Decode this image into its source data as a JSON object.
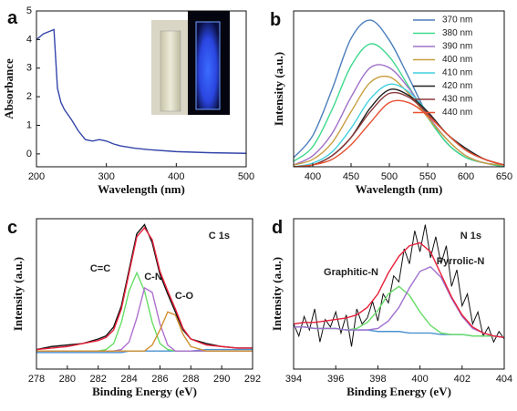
{
  "chart_data": [
    {
      "type": "line",
      "panel": "a",
      "xlabel": "Wavelength (nm)",
      "ylabel": "Absorbance",
      "xlim": [
        200,
        500
      ],
      "xticks": [
        200,
        300,
        400,
        500
      ],
      "ylim": [
        -0.45,
        5
      ],
      "yticks": [
        0,
        1,
        2,
        3,
        4,
        5
      ],
      "x": [
        200,
        210,
        220,
        225,
        230,
        235,
        240,
        250,
        260,
        270,
        280,
        290,
        300,
        310,
        320,
        340,
        360,
        400,
        450,
        500
      ],
      "series": [
        {
          "color": "#3344aa",
          "values": [
            4.0,
            4.2,
            4.3,
            4.35,
            2.3,
            1.8,
            1.55,
            1.2,
            0.8,
            0.5,
            0.45,
            0.5,
            0.45,
            0.35,
            0.28,
            0.2,
            0.15,
            0.08,
            0.04,
            0.02
          ]
        }
      ]
    },
    {
      "type": "line",
      "panel": "b",
      "xlabel": "Wavelength (nm)",
      "ylabel": "Intensity (a.u.)",
      "xlim": [
        375,
        650
      ],
      "xticks": [
        400,
        450,
        500,
        550,
        600,
        650
      ],
      "ylim": [
        0,
        0.85
      ],
      "legend": "upper right",
      "smooth": true,
      "x": [
        375,
        400,
        425,
        450,
        475,
        500,
        525,
        550,
        575,
        600,
        625,
        650
      ],
      "series": [
        {
          "name": "370 nm",
          "color": "#4a7ebb",
          "values": [
            0.05,
            0.17,
            0.42,
            0.7,
            0.8,
            0.69,
            0.49,
            0.28,
            0.13,
            0.05,
            0.02,
            0.0
          ]
        },
        {
          "name": "380 nm",
          "color": "#3ed98c",
          "values": [
            0.03,
            0.11,
            0.31,
            0.55,
            0.67,
            0.6,
            0.44,
            0.27,
            0.13,
            0.05,
            0.02,
            0.0
          ]
        },
        {
          "name": "390 nm",
          "color": "#a070c8",
          "values": [
            0.01,
            0.06,
            0.18,
            0.38,
            0.54,
            0.54,
            0.43,
            0.28,
            0.15,
            0.06,
            0.02,
            0.01
          ]
        },
        {
          "name": "400 nm",
          "color": "#c8a040",
          "values": [
            0.01,
            0.04,
            0.13,
            0.3,
            0.46,
            0.49,
            0.4,
            0.27,
            0.15,
            0.06,
            0.02,
            0.01
          ]
        },
        {
          "name": "410 nm",
          "color": "#40d0e0",
          "values": [
            0.0,
            0.02,
            0.08,
            0.21,
            0.37,
            0.45,
            0.41,
            0.3,
            0.18,
            0.09,
            0.04,
            0.01
          ]
        },
        {
          "name": "420 nm",
          "color": "#202020",
          "values": [
            0.0,
            0.01,
            0.06,
            0.16,
            0.32,
            0.42,
            0.39,
            0.3,
            0.18,
            0.1,
            0.04,
            0.01
          ]
        },
        {
          "name": "430 nm",
          "color": "#8b3a3a",
          "values": [
            0.0,
            0.01,
            0.06,
            0.16,
            0.3,
            0.4,
            0.38,
            0.29,
            0.18,
            0.09,
            0.04,
            0.01
          ]
        },
        {
          "name": "440 nm",
          "color": "#e85030",
          "values": [
            0.0,
            0.01,
            0.04,
            0.12,
            0.24,
            0.35,
            0.35,
            0.28,
            0.18,
            0.09,
            0.04,
            0.01
          ]
        }
      ]
    },
    {
      "type": "line",
      "panel": "c",
      "annotation": "C 1s",
      "xlabel": "Binding Energy (eV)",
      "ylabel": "Intensity (a.u.)",
      "xlim": [
        278,
        292
      ],
      "xticks": [
        278,
        280,
        282,
        284,
        286,
        288,
        290,
        292
      ],
      "ylim": [
        0,
        1
      ],
      "x": [
        278,
        279,
        280,
        281,
        282,
        282.5,
        283,
        283.5,
        284,
        284.5,
        285,
        285.5,
        286,
        286.5,
        287,
        287.5,
        288,
        289,
        290,
        291,
        292
      ],
      "series": [
        {
          "color": "#4a90d0",
          "values": [
            0.11,
            0.11,
            0.11,
            0.11,
            0.11,
            0.11,
            0.11,
            0.11,
            0.12,
            0.12,
            0.12,
            0.12,
            0.12,
            0.12,
            0.12,
            0.12,
            0.12,
            0.13,
            0.13,
            0.13,
            0.13
          ]
        },
        {
          "name": "C=C",
          "color": "#66dd66",
          "values": [
            0.12,
            0.12,
            0.12,
            0.12,
            0.12,
            0.13,
            0.17,
            0.31,
            0.52,
            0.64,
            0.52,
            0.31,
            0.17,
            0.13,
            0.12,
            0.12,
            0.12,
            0.12,
            0.12,
            0.12,
            0.12
          ]
        },
        {
          "name": "C-N",
          "color": "#b070d0",
          "values": [
            0.12,
            0.12,
            0.12,
            0.12,
            0.12,
            0.12,
            0.12,
            0.13,
            0.18,
            0.34,
            0.54,
            0.51,
            0.3,
            0.16,
            0.12,
            0.12,
            0.12,
            0.12,
            0.12,
            0.12,
            0.12
          ]
        },
        {
          "name": "C-O",
          "color": "#d09030",
          "values": [
            0.12,
            0.12,
            0.12,
            0.12,
            0.12,
            0.12,
            0.12,
            0.12,
            0.12,
            0.12,
            0.12,
            0.16,
            0.26,
            0.38,
            0.36,
            0.23,
            0.15,
            0.12,
            0.12,
            0.12,
            0.12
          ]
        },
        {
          "color": "#111111",
          "values": [
            0.13,
            0.15,
            0.16,
            0.17,
            0.2,
            0.22,
            0.28,
            0.42,
            0.66,
            0.9,
            0.96,
            0.84,
            0.63,
            0.5,
            0.38,
            0.26,
            0.2,
            0.17,
            0.15,
            0.14,
            0.14
          ]
        },
        {
          "color": "#e8203a",
          "values": [
            0.13,
            0.14,
            0.15,
            0.17,
            0.19,
            0.21,
            0.26,
            0.4,
            0.64,
            0.88,
            0.94,
            0.86,
            0.65,
            0.52,
            0.4,
            0.27,
            0.2,
            0.16,
            0.15,
            0.14,
            0.14
          ]
        }
      ]
    },
    {
      "type": "line",
      "panel": "d",
      "annotation": "N 1s",
      "xlabel": "Binding Energy (eV)",
      "ylabel": "Intensity (a.u.)",
      "xlim": [
        394,
        404
      ],
      "xticks": [
        394,
        396,
        398,
        400,
        402,
        404
      ],
      "ylim": [
        0,
        1
      ],
      "x": [
        394,
        394.5,
        395,
        395.5,
        396,
        396.5,
        397,
        397.5,
        398,
        398.5,
        399,
        399.5,
        400,
        400.5,
        401,
        401.5,
        402,
        402.5,
        403,
        403.5,
        404
      ],
      "series": [
        {
          "color": "#111111",
          "x": [
            394,
            394.25,
            394.5,
            394.75,
            395,
            395.25,
            395.5,
            395.75,
            396,
            396.25,
            396.5,
            396.75,
            397,
            397.25,
            397.5,
            397.75,
            398,
            398.25,
            398.5,
            398.75,
            399,
            399.25,
            399.5,
            399.75,
            400,
            400.25,
            400.5,
            400.75,
            401,
            401.25,
            401.5,
            401.75,
            402,
            402.25,
            402.5,
            402.75,
            403,
            403.25,
            403.5,
            403.75,
            404
          ],
          "values": [
            0.3,
            0.22,
            0.35,
            0.26,
            0.4,
            0.18,
            0.33,
            0.28,
            0.38,
            0.24,
            0.36,
            0.15,
            0.4,
            0.3,
            0.34,
            0.45,
            0.32,
            0.5,
            0.44,
            0.62,
            0.58,
            0.8,
            0.7,
            0.92,
            0.78,
            0.96,
            0.74,
            0.88,
            0.7,
            0.82,
            0.55,
            0.66,
            0.42,
            0.5,
            0.3,
            0.38,
            0.22,
            0.28,
            0.18,
            0.25,
            0.2
          ]
        },
        {
          "color": "#4a90d0",
          "values": [
            0.28,
            0.28,
            0.27,
            0.27,
            0.27,
            0.26,
            0.26,
            0.26,
            0.25,
            0.25,
            0.25,
            0.24,
            0.24,
            0.24,
            0.23,
            0.23,
            0.23,
            0.22,
            0.22,
            0.22,
            0.21
          ]
        },
        {
          "name": "Graphitic-N",
          "color": "#66dd66",
          "values": [
            0.28,
            0.28,
            0.27,
            0.27,
            0.27,
            0.26,
            0.27,
            0.31,
            0.39,
            0.5,
            0.55,
            0.49,
            0.38,
            0.29,
            0.24,
            0.23,
            0.23,
            0.22,
            0.22,
            0.22,
            0.21
          ]
        },
        {
          "name": "Pyrrolic-N",
          "color": "#a070d0",
          "values": [
            0.28,
            0.28,
            0.27,
            0.27,
            0.27,
            0.26,
            0.26,
            0.26,
            0.27,
            0.32,
            0.41,
            0.54,
            0.65,
            0.68,
            0.61,
            0.47,
            0.35,
            0.27,
            0.24,
            0.22,
            0.21
          ]
        },
        {
          "color": "#e8203a",
          "values": [
            0.3,
            0.31,
            0.31,
            0.32,
            0.33,
            0.34,
            0.36,
            0.41,
            0.5,
            0.64,
            0.75,
            0.82,
            0.84,
            0.78,
            0.63,
            0.48,
            0.36,
            0.28,
            0.24,
            0.22,
            0.21
          ]
        }
      ]
    }
  ]
}
